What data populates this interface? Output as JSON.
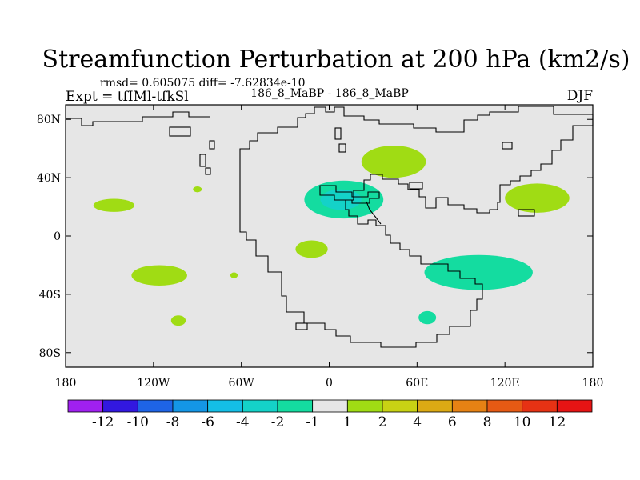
{
  "chart_data": {
    "type": "heatmap",
    "title": "Streamfunction Perturbation at 200 hPa (km2/s)",
    "stats_line": "rmsd= 0.605075 diff= -7.62834e-10",
    "experiment_label": "Expt = tfIMl-tfkSl",
    "comparison_label": "186_8_MaBP - 186_8_MaBP",
    "season": "DJF",
    "xlabel": "",
    "ylabel": "",
    "xlim": [
      -180,
      180
    ],
    "ylim": [
      -90,
      90
    ],
    "x_ticks": [
      {
        "value": -180,
        "label": "180"
      },
      {
        "value": -120,
        "label": "120W"
      },
      {
        "value": -60,
        "label": "60W"
      },
      {
        "value": 0,
        "label": "0"
      },
      {
        "value": 60,
        "label": "60E"
      },
      {
        "value": 120,
        "label": "120E"
      },
      {
        "value": 180,
        "label": "180"
      }
    ],
    "y_ticks": [
      {
        "value": 80,
        "label": "80N"
      },
      {
        "value": 40,
        "label": "40N"
      },
      {
        "value": 0,
        "label": "0"
      },
      {
        "value": -40,
        "label": "40S"
      },
      {
        "value": -80,
        "label": "80S"
      }
    ],
    "background_color": "#e6e6e6",
    "colorbar": {
      "labels": [
        "-12",
        "-10",
        "-8",
        "-6",
        "-4",
        "-2",
        "-1",
        "1",
        "2",
        "4",
        "6",
        "8",
        "10",
        "12"
      ],
      "colors": [
        "#a020f0",
        "#3218e0",
        "#1e64e6",
        "#1496e6",
        "#14bee6",
        "#14d2c8",
        "#14dca0",
        "#e6e6e6",
        "#a0dc14",
        "#c8d214",
        "#dcaa14",
        "#e68214",
        "#e65a14",
        "#e63214",
        "#e61414"
      ]
    },
    "anomalies": [
      {
        "name": "north-pacific-east",
        "lon": -147,
        "lat": 21,
        "rx": 14,
        "ry": 4.5,
        "color": "#a0dc14"
      },
      {
        "name": "tropical-south-pacific",
        "lon": -116,
        "lat": -27,
        "rx": 19,
        "ry": 7,
        "color": "#a0dc14"
      },
      {
        "name": "southern-pacific-small",
        "lon": -103,
        "lat": -58,
        "rx": 5,
        "ry": 3.5,
        "color": "#a0dc14"
      },
      {
        "name": "mexico-small",
        "lon": -90,
        "lat": 32,
        "rx": 3,
        "ry": 2,
        "color": "#a0dc14"
      },
      {
        "name": "south-america-small",
        "lon": -65,
        "lat": -27,
        "rx": 2.5,
        "ry": 2,
        "color": "#a0dc14"
      },
      {
        "name": "tropical-atlantic",
        "lon": -12,
        "lat": -9,
        "rx": 11,
        "ry": 6,
        "color": "#a0dc14"
      },
      {
        "name": "central-asia",
        "lon": 44,
        "lat": 51,
        "rx": 22,
        "ry": 11,
        "color": "#a0dc14"
      },
      {
        "name": "north-pacific-west",
        "lon": 142,
        "lat": 26,
        "rx": 22,
        "ry": 10,
        "color": "#a0dc14"
      },
      {
        "name": "mediterranean-low",
        "lon": 10,
        "lat": 25,
        "rx": 27,
        "ry": 13,
        "color": "#14dca0"
      },
      {
        "name": "mediterranean-low-core",
        "lon": 8,
        "lat": 25,
        "rx": 14,
        "ry": 7,
        "color": "#14d2c8"
      },
      {
        "name": "indian-ocean",
        "lon": 102,
        "lat": -25,
        "rx": 37,
        "ry": 12,
        "color": "#14dca0"
      },
      {
        "name": "southern-africa-small",
        "lon": 67,
        "lat": -56,
        "rx": 6,
        "ry": 4.5,
        "color": "#14dca0"
      }
    ]
  }
}
